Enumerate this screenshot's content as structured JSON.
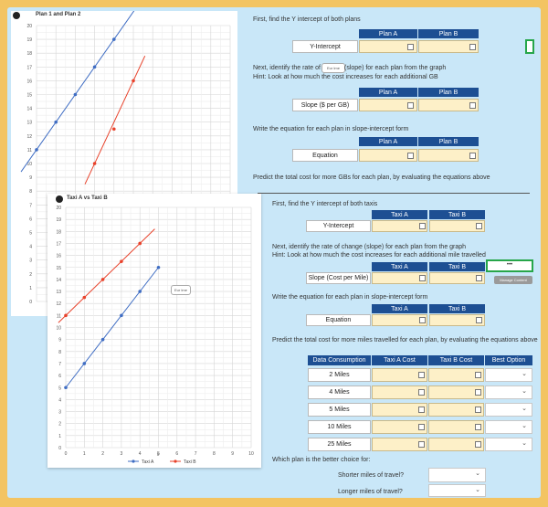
{
  "colors": {
    "navy": "#1d4f93",
    "plan_line": "#3f6dc3",
    "red_line": "#e8412a"
  },
  "chart1": {
    "title": "Plan 1 and Plan 2",
    "y_ticks": [
      "20",
      "19",
      "18",
      "17",
      "16",
      "15",
      "14",
      "13",
      "12",
      "11",
      "10",
      "9",
      "8",
      "7",
      "6",
      "5",
      "4",
      "3",
      "2",
      "1",
      "0"
    ]
  },
  "chart2": {
    "title": "Taxi A vs Taxi B",
    "y_ticks": [
      "20",
      "19",
      "18",
      "17",
      "16",
      "15",
      "14",
      "13",
      "12",
      "11",
      "10",
      "9",
      "8",
      "7",
      "6",
      "5",
      "4",
      "3",
      "2",
      "1",
      "0"
    ],
    "x_ticks": [
      "0",
      "1",
      "2",
      "3",
      "4",
      "5",
      "6",
      "7",
      "8",
      "9",
      "10"
    ],
    "legend": [
      "Taxi A",
      "Taxi B"
    ],
    "x_label": "x"
  },
  "chart_data": [
    {
      "type": "line",
      "title": "Plan 1 and Plan 2",
      "ylim": [
        0,
        20
      ],
      "series": [
        {
          "x": [
            0,
            1,
            2,
            3,
            4
          ],
          "y": [
            11,
            13,
            15,
            17,
            19
          ]
        },
        {
          "x": [
            3,
            4,
            5
          ],
          "y": [
            10,
            12.5,
            16
          ]
        }
      ]
    },
    {
      "type": "line",
      "title": "Taxi A vs Taxi B",
      "xlim": [
        0,
        10
      ],
      "ylim": [
        0,
        20
      ],
      "series": [
        {
          "name": "Taxi A",
          "x": [
            0,
            1,
            2,
            3,
            4,
            5
          ],
          "y": [
            5,
            7,
            9,
            11,
            13,
            15
          ]
        },
        {
          "name": "Taxi B",
          "x": [
            0,
            1,
            2,
            3,
            4
          ],
          "y": [
            11,
            12.5,
            14,
            15.5,
            17
          ]
        }
      ]
    }
  ],
  "plans": {
    "step1": "First, find the Y intercept of both plans",
    "col_a": "Plan A",
    "col_b": "Plan B",
    "row_intercept": "Y-Intercept",
    "step2a_pre": "Next, identify the rate of c",
    "step2a_post": "(slope) for each plan from the graph",
    "tooltip": "Eur Ime",
    "step2b": "Hint: Look at how much the cost increases for each additional GB",
    "row_slope": "Slope ($ per GB)",
    "step3": "Write the equation for each plan in slope-intercept form",
    "row_equation": "Equation",
    "step4": "Predict the total cost for more GBs for each plan, by evaluating the equations above"
  },
  "taxi": {
    "step1": "First, find the Y intercept of both taxis",
    "col_a": "Taxi A",
    "col_b": "Taxi B",
    "row_intercept": "Y-Intercept",
    "step2a": "Next, identify the rate of change (slope) for each plan from the graph",
    "step2b": "Hint: Look at how much the cost increases for each additional mile travelled",
    "row_slope": "Slope (Cost per Mile)",
    "more": "•••",
    "manage": "Manage Content",
    "step3": "Write the equation for each plan in slope-intercept form",
    "row_equation": "Equation",
    "step4": "Predict the total cost for more miles travelled for each plan, by evaluating the equations above",
    "pred_headers": [
      "Data Consumption",
      "Taxi A Cost",
      "Taxi B Cost",
      "Best Option"
    ],
    "pred_rows": [
      "2 Miles",
      "4 Miles",
      "5 Miles",
      "10 Miles",
      "25 Miles"
    ],
    "question": "Which plan is the better choice for:",
    "q1": "Shorter miles of travel?",
    "q2": "Longer miles of travel?"
  },
  "chart_tip": "Eur Ime"
}
